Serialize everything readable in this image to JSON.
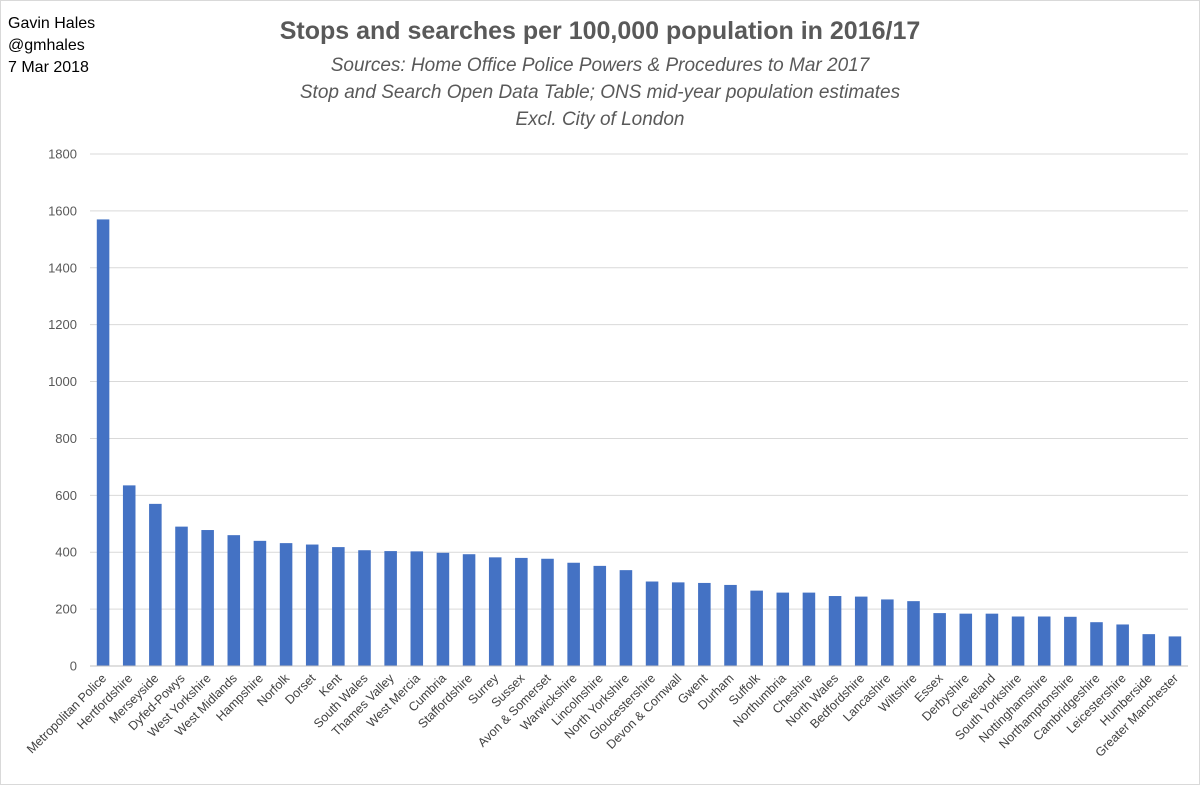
{
  "author": {
    "name": "Gavin Hales",
    "handle": "@gmhales",
    "date": "7 Mar 2018"
  },
  "chart_data": {
    "type": "bar",
    "title": "Stops and searches per 100,000 population in 2016/17",
    "subtitles": [
      "Sources: Home Office Police Powers & Procedures to Mar 2017",
      "Stop and Search Open Data Table; ONS mid-year population estimates",
      "Excl. City of London"
    ],
    "xlabel": "",
    "ylabel": "",
    "ylim": [
      0,
      1800
    ],
    "yticks": [
      0,
      200,
      400,
      600,
      800,
      1000,
      1200,
      1400,
      1600,
      1800
    ],
    "grid": true,
    "bar_color": "#4472c4",
    "categories": [
      "Metropolitan Police",
      "Hertfordshire",
      "Merseyside",
      "Dyfed-Powys",
      "West Yorkshire",
      "West Midlands",
      "Hampshire",
      "Norfolk",
      "Dorset",
      "Kent",
      "South Wales",
      "Thames Valley",
      "West Mercia",
      "Cumbria",
      "Staffordshire",
      "Surrey",
      "Sussex",
      "Avon & Somerset",
      "Warwickshire",
      "Lincolnshire",
      "North Yorkshire",
      "Gloucestershire",
      "Devon & Cornwall",
      "Gwent",
      "Durham",
      "Suffolk",
      "Northumbria",
      "Cheshire",
      "North Wales",
      "Bedfordshire",
      "Lancashire",
      "Wiltshire",
      "Essex",
      "Derbyshire",
      "Cleveland",
      "South Yorkshire",
      "Nottinghamshire",
      "Northamptonshire",
      "Cambridgeshire",
      "Leicestershire",
      "Humberside",
      "Greater Manchester"
    ],
    "values": [
      1570,
      635,
      570,
      490,
      478,
      460,
      440,
      432,
      427,
      418,
      407,
      404,
      403,
      398,
      393,
      382,
      380,
      377,
      363,
      352,
      337,
      297,
      294,
      292,
      285,
      265,
      258,
      258,
      246,
      244,
      234,
      228,
      186,
      184,
      184,
      174,
      174,
      173,
      154,
      146,
      112,
      104
    ]
  }
}
